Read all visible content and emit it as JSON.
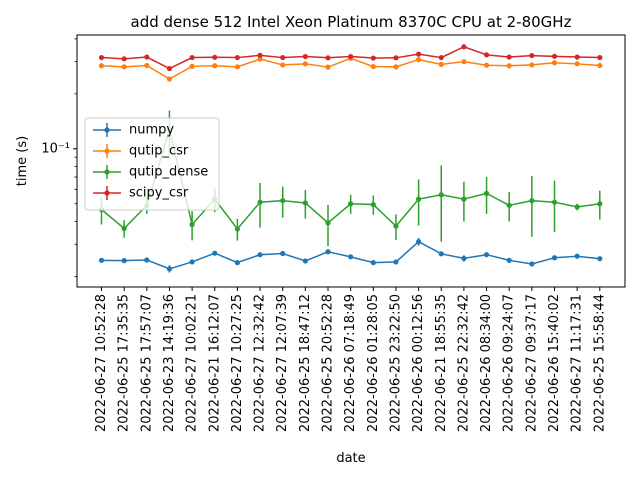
{
  "chart_data": {
    "type": "line",
    "title": "add dense 512 Intel Xeon Platinum 8370C CPU at 2-80GHz",
    "xlabel": "date",
    "ylabel": "time (s)",
    "yscale": "log",
    "ylim": [
      0.0175,
      0.42
    ],
    "ytick_label": "10⁻¹",
    "ytick_value": 0.1,
    "grid": false,
    "legend": "center-left",
    "categories": [
      "2022-06-27 10:52:28",
      "2022-06-25 17:35:35",
      "2022-06-25 17:57:07",
      "2022-06-23 14:19:36",
      "2022-06-27 10:02:21",
      "2022-06-21 16:12:07",
      "2022-06-27 10:27:25",
      "2022-06-27 12:32:42",
      "2022-06-27 12:07:39",
      "2022-06-25 18:47:12",
      "2022-06-25 20:52:28",
      "2022-06-26 07:18:49",
      "2022-06-26 01:28:05",
      "2022-06-25 23:22:50",
      "2022-06-26 00:12:56",
      "2022-06-21 18:55:35",
      "2022-06-25 22:32:42",
      "2022-06-26 08:34:00",
      "2022-06-26 09:24:07",
      "2022-06-27 09:37:17",
      "2022-06-26 15:40:02",
      "2022-06-27 11:17:31",
      "2022-06-25 15:58:44"
    ],
    "series": [
      {
        "name": "numpy",
        "color": "#1f77b4",
        "values": [
          0.0245,
          0.0244,
          0.0246,
          0.022,
          0.024,
          0.0268,
          0.0238,
          0.0263,
          0.0267,
          0.0243,
          0.0273,
          0.0256,
          0.0238,
          0.024,
          0.031,
          0.0266,
          0.0251,
          0.0263,
          0.0245,
          0.0234,
          0.0253,
          0.0258,
          0.025
        ],
        "errors": [
          0.0005,
          0.0005,
          0.0005,
          0.001,
          0.0005,
          0.0005,
          0.0005,
          0.0005,
          0.0005,
          0.0005,
          0.0005,
          0.0005,
          0.0005,
          0.0005,
          0.0015,
          0.0005,
          0.001,
          0.0005,
          0.0005,
          0.0005,
          0.0005,
          0.0005,
          0.0005
        ]
      },
      {
        "name": "qutip_csr",
        "color": "#ff7f0e",
        "values": [
          0.285,
          0.281,
          0.286,
          0.241,
          0.283,
          0.285,
          0.281,
          0.31,
          0.288,
          0.292,
          0.28,
          0.313,
          0.282,
          0.281,
          0.308,
          0.29,
          0.3,
          0.287,
          0.285,
          0.288,
          0.296,
          0.292,
          0.286
        ],
        "errors": [
          0.003,
          0.003,
          0.003,
          0.005,
          0.003,
          0.003,
          0.003,
          0.005,
          0.003,
          0.003,
          0.003,
          0.005,
          0.003,
          0.003,
          0.005,
          0.003,
          0.003,
          0.003,
          0.003,
          0.003,
          0.003,
          0.003,
          0.003
        ]
      },
      {
        "name": "qutip_dense",
        "color": "#2ca02c",
        "values": [
          0.0465,
          0.0366,
          0.049,
          0.127,
          0.0385,
          0.053,
          0.0364,
          0.051,
          0.052,
          0.0505,
          0.0393,
          0.05,
          0.0495,
          0.0377,
          0.053,
          0.056,
          0.053,
          0.057,
          0.049,
          0.052,
          0.051,
          0.048,
          0.05
        ],
        "errors": [
          0.008,
          0.004,
          0.005,
          0.035,
          0.007,
          0.008,
          0.005,
          0.014,
          0.01,
          0.009,
          0.01,
          0.006,
          0.006,
          0.006,
          0.015,
          0.025,
          0.013,
          0.013,
          0.009,
          0.019,
          0.016,
          0.002,
          0.009
        ]
      },
      {
        "name": "scipy_csr",
        "color": "#d62728",
        "values": [
          0.316,
          0.311,
          0.318,
          0.275,
          0.316,
          0.317,
          0.316,
          0.325,
          0.316,
          0.32,
          0.315,
          0.32,
          0.314,
          0.315,
          0.33,
          0.316,
          0.362,
          0.327,
          0.318,
          0.324,
          0.321,
          0.318,
          0.316
        ],
        "errors": [
          0.003,
          0.003,
          0.003,
          0.005,
          0.003,
          0.003,
          0.003,
          0.003,
          0.003,
          0.003,
          0.003,
          0.003,
          0.003,
          0.003,
          0.005,
          0.003,
          0.005,
          0.003,
          0.003,
          0.003,
          0.003,
          0.003,
          0.003
        ]
      }
    ]
  }
}
